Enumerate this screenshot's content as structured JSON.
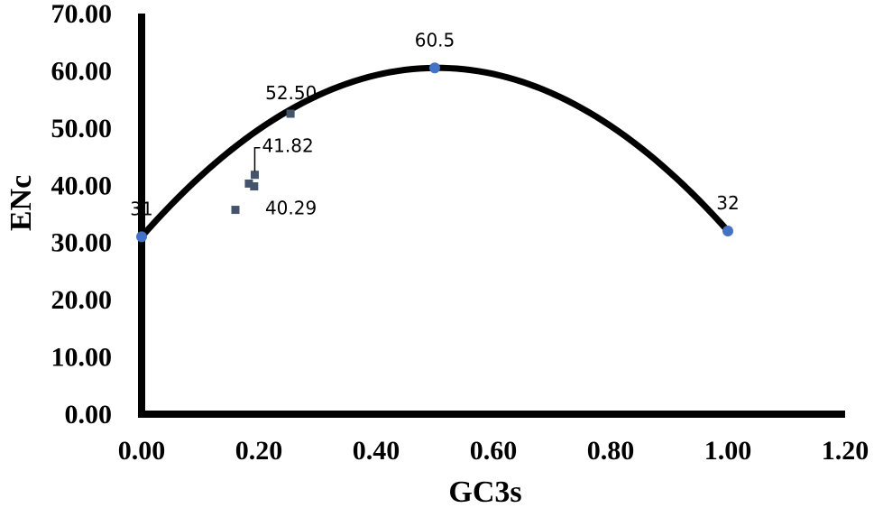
{
  "chart_data": {
    "type": "scatter",
    "title": "",
    "xlabel": "GC3s",
    "ylabel": "ENc",
    "xlim": [
      0,
      1.2
    ],
    "ylim": [
      0,
      70
    ],
    "x_ticks": [
      "0.00",
      "0.20",
      "0.40",
      "0.60",
      "0.80",
      "1.00",
      "1.20"
    ],
    "y_ticks": [
      "0.00",
      "10.00",
      "20.00",
      "30.00",
      "40.00",
      "50.00",
      "60.00",
      "70.00"
    ],
    "grid": false,
    "legend": "none",
    "series": [
      {
        "kind": "curve",
        "color": "#000000",
        "points": [
          {
            "x": 0.0,
            "y": 31,
            "label": "31"
          },
          {
            "x": 0.5,
            "y": 60.5,
            "label": "60.5"
          },
          {
            "x": 1.0,
            "y": 32,
            "label": "32"
          }
        ],
        "marker_color": "#4472C4"
      },
      {
        "kind": "points",
        "marker": "square",
        "color": "#44546A",
        "points": [
          {
            "x": 0.16,
            "y": 35.7
          },
          {
            "x": 0.183,
            "y": 40.29,
            "label": "40.29"
          },
          {
            "x": 0.192,
            "y": 39.8
          },
          {
            "x": 0.193,
            "y": 41.82,
            "label": "41.82"
          },
          {
            "x": 0.254,
            "y": 52.5,
            "label": "52.50"
          }
        ]
      }
    ]
  }
}
